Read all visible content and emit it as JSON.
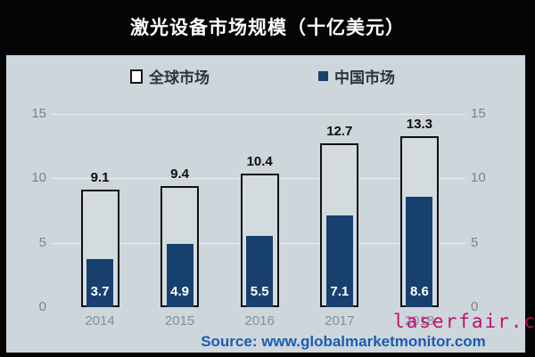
{
  "title_bar": {
    "title": "激光设备市场规模（十亿美元）"
  },
  "chart_data": {
    "type": "bar",
    "title": "激光设备市场规模（十亿美元）",
    "categories": [
      "2014",
      "2015",
      "2016",
      "2017",
      "2018"
    ],
    "series": [
      {
        "name": "全球市场",
        "values": [
          9.1,
          9.4,
          10.4,
          12.7,
          13.3
        ],
        "style": "outlined",
        "color": "#101010",
        "fill": "#d4dbdf"
      },
      {
        "name": "中国市场",
        "values": [
          3.7,
          4.9,
          5.5,
          7.1,
          8.6
        ],
        "style": "filled",
        "color": "#17406f"
      }
    ],
    "xlabel": "",
    "ylabel": "",
    "ylim": [
      0,
      15
    ],
    "yticks": [
      0,
      5,
      10,
      15
    ],
    "grid": true,
    "legend_position": "top",
    "value_labels": true,
    "dual_y_axis": true
  },
  "source": {
    "text": "Source: www.globalmarketmonitor.com",
    "color": "#1d5bb4"
  },
  "watermark": {
    "text": "laserfair.com",
    "color": "#c30570"
  },
  "colors": {
    "window_bg": "#050505",
    "panel_bg": "#cdd6db",
    "china_bar": "#17406f",
    "global_bar_border": "#101010",
    "axis_text": "#7b838a",
    "year_text": "#878f96"
  }
}
